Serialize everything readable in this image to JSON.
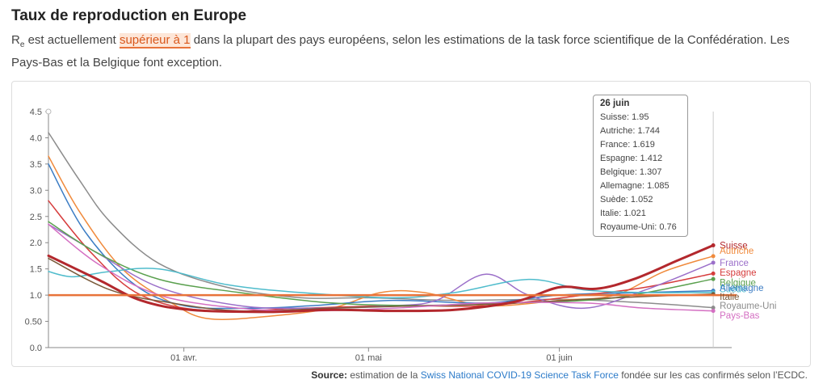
{
  "header": {
    "title": "Taux de reproduction en Europe",
    "subtitle_r": "R",
    "subtitle_sub": "e",
    "subtitle_pre": " est actuellement ",
    "subtitle_highlight": "supérieur à 1",
    "subtitle_post": " dans la plupart des pays européens, selon les estimations de la task force scientifique de la Confédération. Les Pays-Bas et la Belgique font exception."
  },
  "tooltip": {
    "date": "26 juin",
    "rows": [
      "Suisse: 1.95",
      "Autriche: 1.744",
      "France: 1.619",
      "Espagne: 1.412",
      "Belgique: 1.307",
      "Allemagne: 1.085",
      "Suède: 1.052",
      "Italie: 1.021",
      "Royaume-Uni: 0.76"
    ]
  },
  "source": {
    "label": "Source:",
    "text1": " estimation de la ",
    "link": "Swiss National COVID-19 Science Task Force",
    "text2": " fondée sur les cas confirmés selon l’ECDC."
  },
  "chart_data": {
    "type": "line",
    "x_start": "2020-03-10",
    "x_end": "2020-06-29",
    "x_ticks": [
      {
        "date": "2020-04-01",
        "label": "01 avr."
      },
      {
        "date": "2020-05-01",
        "label": "01 mai"
      },
      {
        "date": "2020-06-01",
        "label": "01 juin"
      }
    ],
    "ylim": [
      0,
      4.5
    ],
    "y_ticks": [
      0.0,
      0.5,
      1.0,
      1.5,
      2.0,
      2.5,
      3.0,
      3.5,
      4.0,
      4.5
    ],
    "y_tick_labels": [
      "0.0",
      "0.50",
      "1.0",
      "1.5",
      "2.0",
      "2.5",
      "3.0",
      "3.5",
      "4.0",
      "4.5"
    ],
    "reference_line": 1.0,
    "hover_date": "2020-06-26",
    "series": [
      {
        "name": "Royaume-Uni",
        "color": "#8c8c8c",
        "width": 1.5,
        "points": [
          [
            "2020-03-10",
            4.1
          ],
          [
            "2020-03-15",
            3.2
          ],
          [
            "2020-03-20",
            2.4
          ],
          [
            "2020-03-28",
            1.6
          ],
          [
            "2020-04-08",
            1.15
          ],
          [
            "2020-04-20",
            0.95
          ],
          [
            "2020-05-01",
            0.95
          ],
          [
            "2020-05-15",
            0.9
          ],
          [
            "2020-06-01",
            0.92
          ],
          [
            "2020-06-15",
            0.85
          ],
          [
            "2020-06-26",
            0.76
          ]
        ]
      },
      {
        "name": "Autriche",
        "color": "#f08a3c",
        "width": 1.5,
        "points": [
          [
            "2020-03-10",
            3.65
          ],
          [
            "2020-03-15",
            2.6
          ],
          [
            "2020-03-22",
            1.5
          ],
          [
            "2020-03-30",
            0.85
          ],
          [
            "2020-04-05",
            0.55
          ],
          [
            "2020-04-15",
            0.6
          ],
          [
            "2020-04-25",
            0.75
          ],
          [
            "2020-05-03",
            1.05
          ],
          [
            "2020-05-10",
            1.05
          ],
          [
            "2020-05-20",
            0.8
          ],
          [
            "2020-06-01",
            0.9
          ],
          [
            "2020-06-10",
            1.0
          ],
          [
            "2020-06-18",
            1.45
          ],
          [
            "2020-06-26",
            1.744
          ]
        ]
      },
      {
        "name": "Allemagne",
        "color": "#3b7cc4",
        "width": 1.5,
        "points": [
          [
            "2020-03-10",
            3.5
          ],
          [
            "2020-03-16",
            2.2
          ],
          [
            "2020-03-24",
            1.2
          ],
          [
            "2020-04-01",
            0.8
          ],
          [
            "2020-04-12",
            0.75
          ],
          [
            "2020-04-22",
            0.8
          ],
          [
            "2020-05-05",
            0.9
          ],
          [
            "2020-05-20",
            0.85
          ],
          [
            "2020-06-01",
            1.0
          ],
          [
            "2020-06-15",
            1.05
          ],
          [
            "2020-06-26",
            1.085
          ]
        ]
      },
      {
        "name": "Espagne",
        "color": "#d63c3c",
        "width": 1.5,
        "points": [
          [
            "2020-03-10",
            2.8
          ],
          [
            "2020-03-17",
            1.8
          ],
          [
            "2020-03-25",
            1.0
          ],
          [
            "2020-04-05",
            0.7
          ],
          [
            "2020-04-20",
            0.75
          ],
          [
            "2020-05-05",
            0.8
          ],
          [
            "2020-05-20",
            0.8
          ],
          [
            "2020-06-05",
            1.0
          ],
          [
            "2020-06-15",
            1.15
          ],
          [
            "2020-06-26",
            1.412
          ]
        ]
      },
      {
        "name": "France",
        "color": "#9b6fc9",
        "width": 1.5,
        "points": [
          [
            "2020-03-10",
            2.35
          ],
          [
            "2020-03-18",
            1.8
          ],
          [
            "2020-03-28",
            1.15
          ],
          [
            "2020-04-10",
            0.8
          ],
          [
            "2020-04-22",
            0.75
          ],
          [
            "2020-05-05",
            0.8
          ],
          [
            "2020-05-12",
            0.9
          ],
          [
            "2020-05-20",
            1.4
          ],
          [
            "2020-05-27",
            1.0
          ],
          [
            "2020-06-05",
            0.75
          ],
          [
            "2020-06-15",
            1.1
          ],
          [
            "2020-06-26",
            1.619
          ]
        ]
      },
      {
        "name": "Belgique",
        "color": "#5aa04e",
        "width": 1.5,
        "points": [
          [
            "2020-03-10",
            2.4
          ],
          [
            "2020-03-18",
            1.8
          ],
          [
            "2020-03-28",
            1.3
          ],
          [
            "2020-04-10",
            1.05
          ],
          [
            "2020-04-25",
            0.85
          ],
          [
            "2020-05-10",
            0.8
          ],
          [
            "2020-05-25",
            0.85
          ],
          [
            "2020-06-10",
            0.95
          ],
          [
            "2020-06-26",
            1.307
          ]
        ]
      },
      {
        "name": "Suède",
        "color": "#4fbccc",
        "width": 1.5,
        "points": [
          [
            "2020-03-10",
            1.45
          ],
          [
            "2020-03-14",
            1.35
          ],
          [
            "2020-03-20",
            1.45
          ],
          [
            "2020-03-28",
            1.5
          ],
          [
            "2020-04-08",
            1.2
          ],
          [
            "2020-04-20",
            1.05
          ],
          [
            "2020-05-05",
            0.95
          ],
          [
            "2020-05-15",
            1.05
          ],
          [
            "2020-05-27",
            1.3
          ],
          [
            "2020-06-05",
            1.1
          ],
          [
            "2020-06-15",
            1.05
          ],
          [
            "2020-06-26",
            1.052
          ]
        ]
      },
      {
        "name": "Italie",
        "color": "#7a5a3a",
        "width": 1.5,
        "points": [
          [
            "2020-03-10",
            1.7
          ],
          [
            "2020-03-20",
            1.1
          ],
          [
            "2020-03-30",
            0.85
          ],
          [
            "2020-04-10",
            0.7
          ],
          [
            "2020-04-25",
            0.75
          ],
          [
            "2020-05-10",
            0.8
          ],
          [
            "2020-05-25",
            0.85
          ],
          [
            "2020-06-10",
            0.95
          ],
          [
            "2020-06-26",
            1.021
          ]
        ]
      },
      {
        "name": "Pays-Bas",
        "color": "#d46fc2",
        "width": 1.5,
        "points": [
          [
            "2020-03-10",
            2.35
          ],
          [
            "2020-03-18",
            1.6
          ],
          [
            "2020-03-28",
            1.0
          ],
          [
            "2020-04-10",
            0.75
          ],
          [
            "2020-04-22",
            0.7
          ],
          [
            "2020-05-05",
            0.75
          ],
          [
            "2020-05-20",
            0.85
          ],
          [
            "2020-06-05",
            0.85
          ],
          [
            "2020-06-15",
            0.75
          ],
          [
            "2020-06-26",
            0.7
          ]
        ]
      },
      {
        "name": "Suisse",
        "color": "#b3282d",
        "width": 3,
        "points": [
          [
            "2020-03-10",
            1.75
          ],
          [
            "2020-03-18",
            1.3
          ],
          [
            "2020-03-25",
            0.9
          ],
          [
            "2020-04-02",
            0.72
          ],
          [
            "2020-04-15",
            0.68
          ],
          [
            "2020-04-25",
            0.72
          ],
          [
            "2020-05-05",
            0.7
          ],
          [
            "2020-05-15",
            0.72
          ],
          [
            "2020-05-25",
            0.88
          ],
          [
            "2020-06-01",
            1.15
          ],
          [
            "2020-06-07",
            1.12
          ],
          [
            "2020-06-13",
            1.3
          ],
          [
            "2020-06-20",
            1.65
          ],
          [
            "2020-06-26",
            1.95
          ]
        ]
      }
    ],
    "end_labels": [
      {
        "name": "Suisse",
        "color": "#b3282d",
        "y": 1.95
      },
      {
        "name": "Autriche",
        "color": "#f08a3c",
        "y": 1.85
      },
      {
        "name": "France",
        "color": "#9b6fc9",
        "y": 1.62
      },
      {
        "name": "Espagne",
        "color": "#d63c3c",
        "y": 1.43
      },
      {
        "name": "Belgique",
        "color": "#5aa04e",
        "y": 1.24
      },
      {
        "name": "Suède",
        "color": "#4fbccc",
        "y": 1.12
      },
      {
        "name": "Allemagne",
        "color": "#3b7cc4",
        "y": 1.14
      },
      {
        "name": "Italie",
        "color": "#7a5a3a",
        "y": 0.97
      },
      {
        "name": "Royaume-Uni",
        "color": "#8c8c8c",
        "y": 0.8
      },
      {
        "name": "Pays-Bas",
        "color": "#d46fc2",
        "y": 0.62
      }
    ]
  }
}
